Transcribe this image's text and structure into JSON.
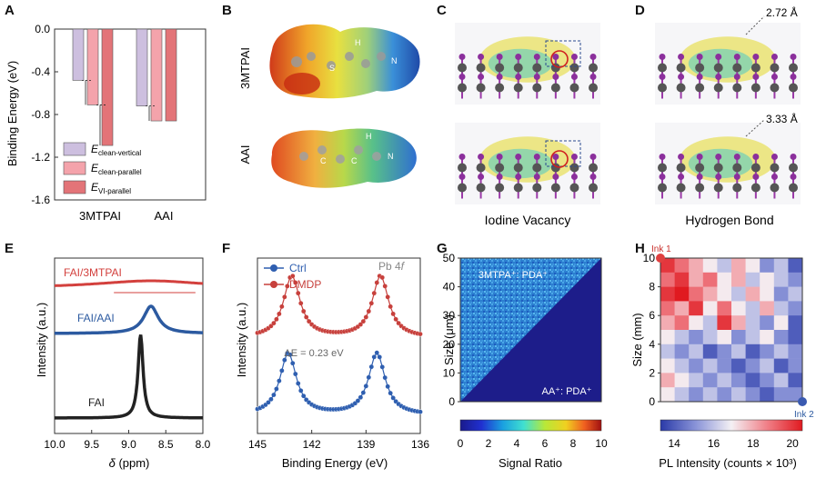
{
  "panel_letters": {
    "A": "A",
    "B": "B",
    "C": "C",
    "D": "D",
    "E": "E",
    "F": "F",
    "G": "G",
    "H": "H"
  },
  "colors": {
    "clean_vertical": "#cdbfdf",
    "clean_parallel": "#f4a3ab",
    "vi_parallel": "#e37478",
    "ctrl": "#2f5fb0",
    "dmdp": "#c7403c",
    "fai_3mtpai": "#d3403d",
    "fai_aai": "#2c5aa0",
    "fai": "#222222"
  },
  "panelB": {
    "mol1": "3MTPAI",
    "mol2": "AAI",
    "atoms1": [
      "S",
      "H",
      "N"
    ],
    "atoms2": [
      "C",
      "C",
      "H",
      "N"
    ]
  },
  "panelC": {
    "caption": "Iodine Vacancy"
  },
  "panelD": {
    "caption": "Hydrogen Bond",
    "dist1": "2.72 Å",
    "dist2": "3.33 Å"
  },
  "chart_data": [
    {
      "id": "A",
      "type": "bar",
      "ylabel": "Binding Energy (eV)",
      "categories": [
        "3MTPAI",
        "AAI"
      ],
      "ylim": [
        -1.6,
        0.0
      ],
      "yticks": [
        "0.0",
        "-0.4",
        "-0.8",
        "-1.2",
        "-1.6"
      ],
      "series": [
        {
          "name": "E",
          "sub": "clean-vertical",
          "values": [
            -0.48,
            -0.72
          ]
        },
        {
          "name": "E",
          "sub": "clean-parallel",
          "values": [
            -0.71,
            -0.86
          ]
        },
        {
          "name": "E",
          "sub": "VI-parallel",
          "values": [
            -1.09,
            -0.86
          ]
        }
      ]
    },
    {
      "id": "E",
      "type": "line",
      "xlabel_sym": "δ",
      "xlabel_unit": " (ppm)",
      "ylabel": "Intensity (a.u.)",
      "xlim": [
        10.0,
        8.0
      ],
      "xticks": [
        "10.0",
        "9.5",
        "9.0",
        "8.5",
        "8.0"
      ],
      "series": [
        {
          "name": "FAI/3MTPAI",
          "peak": 8.7,
          "width": "broad"
        },
        {
          "name": "FAI/AAI",
          "peak": 8.7,
          "width": "medium"
        },
        {
          "name": "FAI",
          "peak": 8.84,
          "width": "sharp"
        }
      ]
    },
    {
      "id": "F",
      "type": "line",
      "xlabel": "Binding Energy (eV)",
      "ylabel": "Intensity (a.u.)",
      "xlim": [
        145,
        136
      ],
      "xticks": [
        "145",
        "142",
        "139",
        "136"
      ],
      "annotation_label": "Pb 4",
      "annotation_italic": "f",
      "shift_label": "ΔE = 0.23 eV",
      "series": [
        {
          "name": "Ctrl",
          "peaks": [
            143.3,
            138.4
          ]
        },
        {
          "name": "DMDP",
          "peaks": [
            143.1,
            138.2
          ]
        }
      ]
    },
    {
      "id": "G",
      "type": "heatmap",
      "ylabel": "Size (μm)",
      "ylim": [
        0,
        50
      ],
      "yticks": [
        "0",
        "10",
        "20",
        "30",
        "40",
        "50"
      ],
      "upper_label": "3MTPA⁺: PDA⁺",
      "lower_label": "AA⁺: PDA⁺",
      "colorbar_label": "Signal Ratio",
      "colorbar_ticks": [
        "0",
        "2",
        "4",
        "6",
        "8",
        "10"
      ]
    },
    {
      "id": "H",
      "type": "heatmap",
      "ylabel": "Size (mm)",
      "ylim": [
        0,
        10
      ],
      "yticks": [
        "0",
        "2",
        "4",
        "6",
        "8",
        "10"
      ],
      "ink1": "Ink 1",
      "ink2": "Ink 2",
      "colorbar_label": "PL Intensity (counts × 10³)",
      "colorbar_ticks": [
        "14",
        "16",
        "18",
        "20"
      ]
    }
  ]
}
